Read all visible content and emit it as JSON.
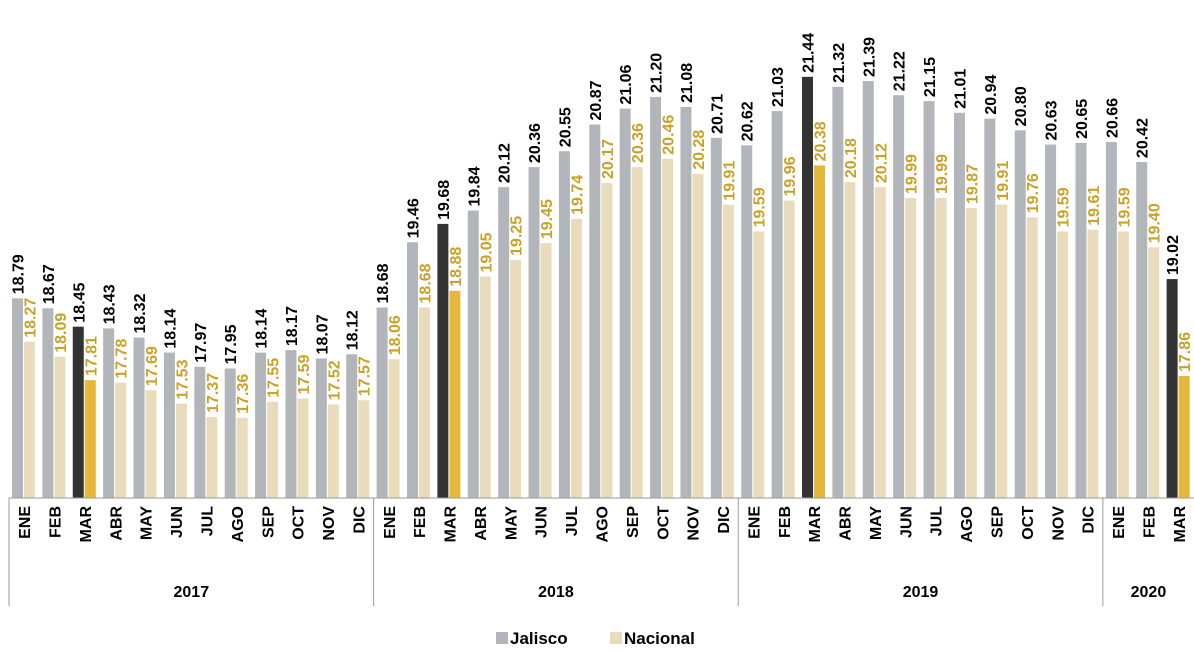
{
  "chart_data": {
    "type": "bar",
    "categories": [
      "ENE",
      "FEB",
      "MAR",
      "ABR",
      "MAY",
      "JUN",
      "JUL",
      "AGO",
      "SEP",
      "OCT",
      "NOV",
      "DIC",
      "ENE",
      "FEB",
      "MAR",
      "ABR",
      "MAY",
      "JUN",
      "JUL",
      "AGO",
      "SEP",
      "OCT",
      "NOV",
      "DIC",
      "ENE",
      "FEB",
      "MAR",
      "ABR",
      "MAY",
      "JUN",
      "JUL",
      "AGO",
      "SEP",
      "OCT",
      "NOV",
      "DIC",
      "ENE",
      "FEB",
      "MAR"
    ],
    "years": [
      {
        "label": "2017",
        "count": 12
      },
      {
        "label": "2018",
        "count": 12
      },
      {
        "label": "2019",
        "count": 12
      },
      {
        "label": "2020",
        "count": 3
      }
    ],
    "series": [
      {
        "name": "Jalisco",
        "color": "#b2b6ba",
        "highlight_color": "#333333",
        "label_color": "#000000",
        "values": [
          18.79,
          18.67,
          18.45,
          18.43,
          18.32,
          18.14,
          17.97,
          17.95,
          18.14,
          18.17,
          18.07,
          18.12,
          18.68,
          19.46,
          19.68,
          19.84,
          20.12,
          20.36,
          20.55,
          20.87,
          21.06,
          21.2,
          21.08,
          20.71,
          20.62,
          21.03,
          21.44,
          21.32,
          21.39,
          21.22,
          21.15,
          21.01,
          20.94,
          20.8,
          20.63,
          20.65,
          20.66,
          20.42,
          19.02
        ]
      },
      {
        "name": "Nacional",
        "color": "#e9dcbd",
        "highlight_color": "#e3b83c",
        "label_color": "#c9a227",
        "values": [
          18.27,
          18.09,
          17.81,
          17.78,
          17.69,
          17.53,
          17.37,
          17.36,
          17.55,
          17.59,
          17.52,
          17.57,
          18.06,
          18.68,
          18.88,
          19.05,
          19.25,
          19.45,
          19.74,
          20.17,
          20.36,
          20.46,
          20.28,
          19.91,
          19.59,
          19.96,
          20.38,
          20.18,
          20.12,
          19.99,
          19.99,
          19.87,
          19.91,
          19.76,
          19.59,
          19.61,
          19.59,
          19.4,
          17.86
        ]
      }
    ],
    "highlight_indices": [
      2,
      14,
      26,
      38
    ],
    "ylim": [
      16.4,
      21.45
    ],
    "legend_position": "bottom-center",
    "grid": false,
    "title": "",
    "xlabel": "",
    "ylabel": ""
  }
}
